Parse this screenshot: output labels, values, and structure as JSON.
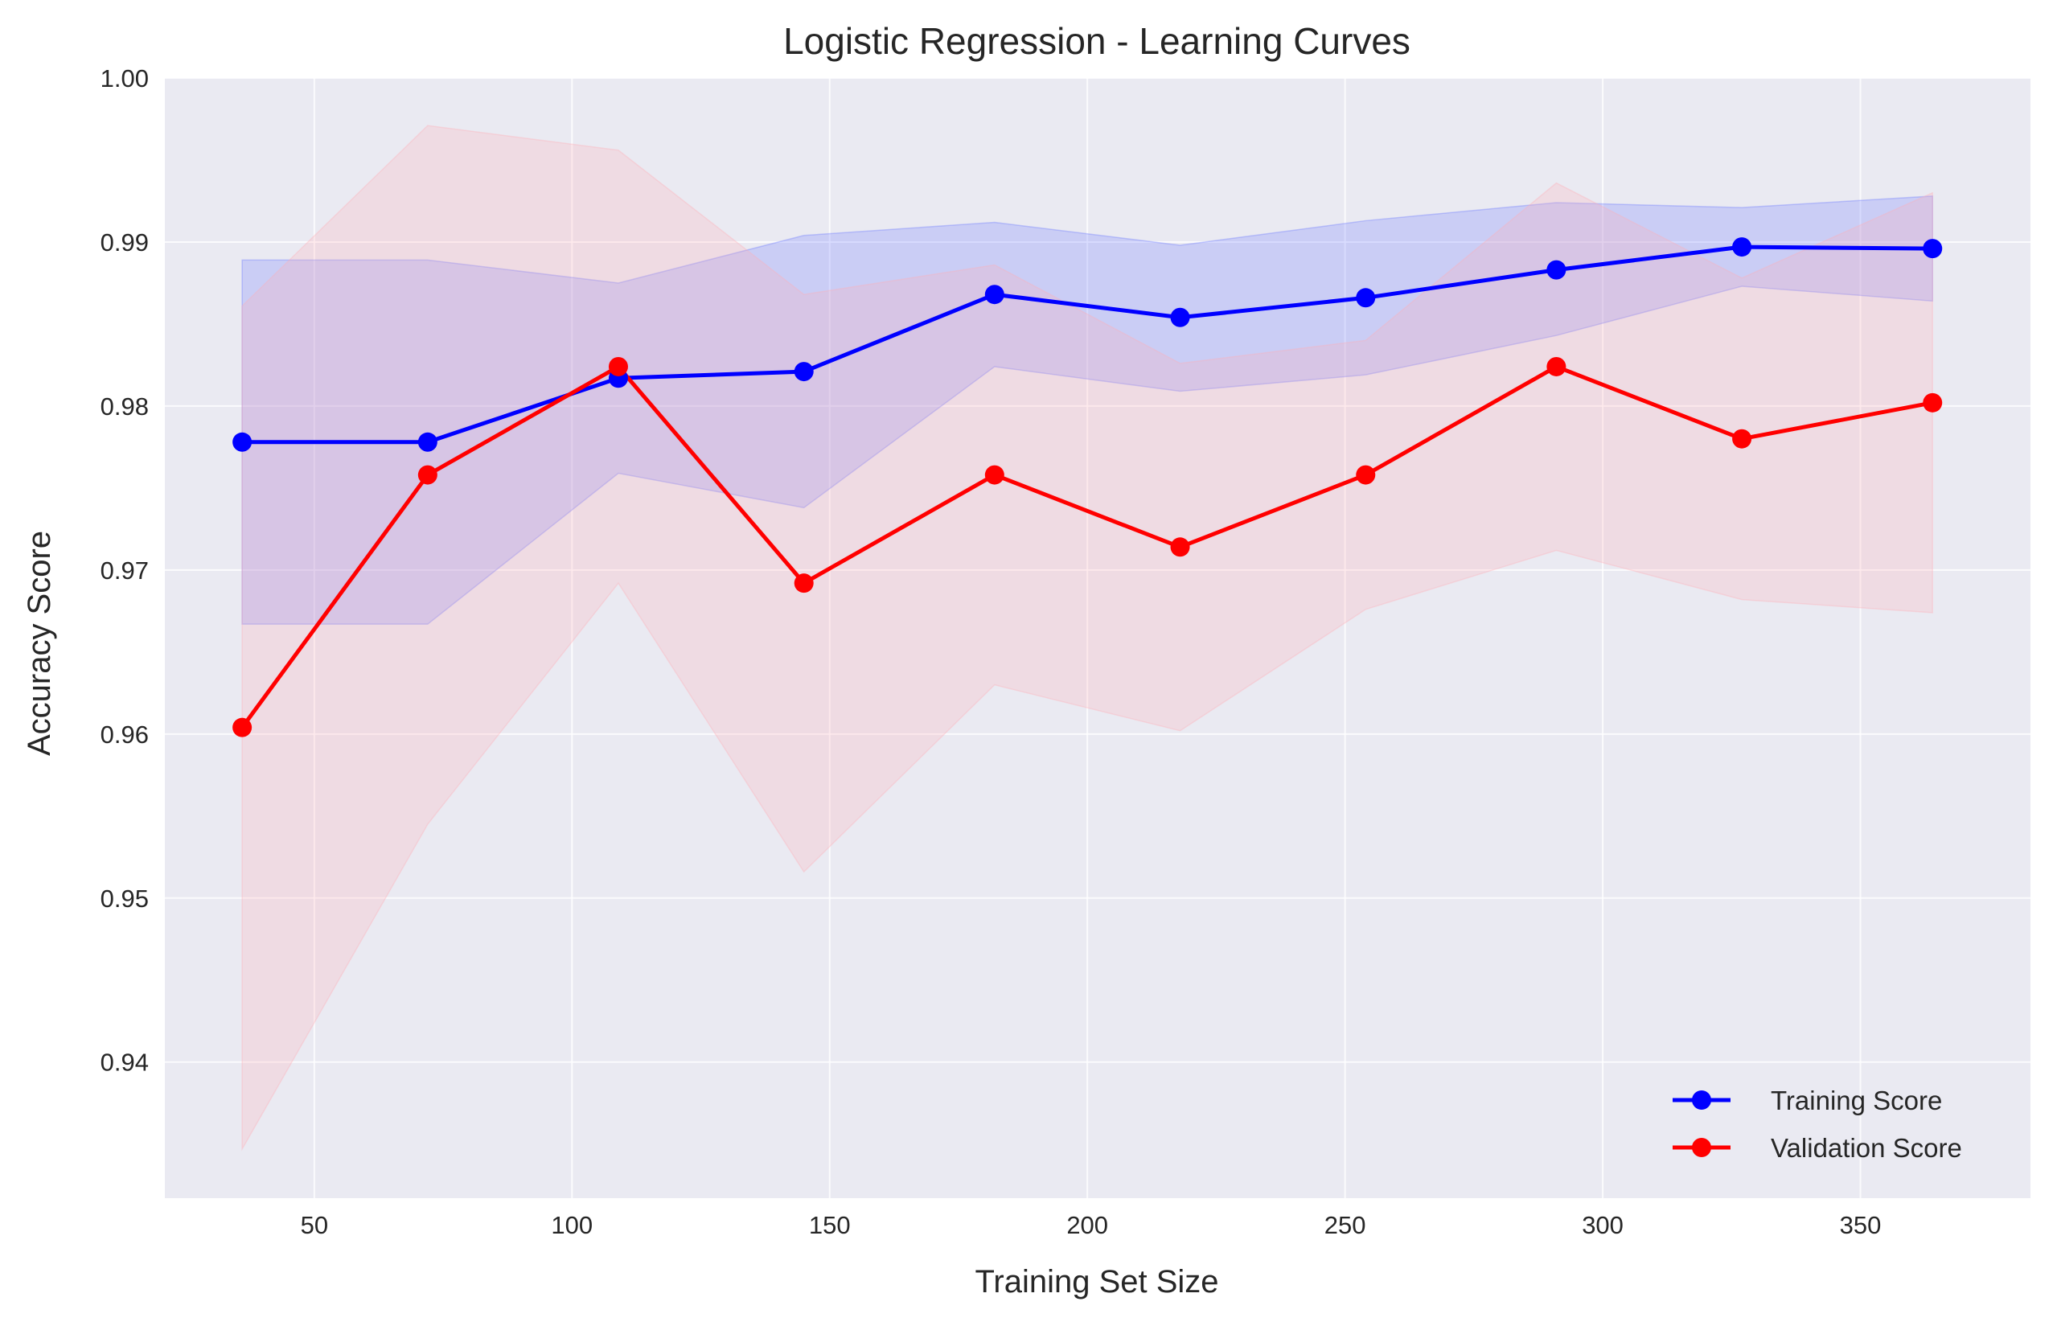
{
  "chart_data": {
    "type": "line",
    "title": "Logistic Regression - Learning Curves",
    "xlabel": "Training Set Size",
    "ylabel": "Accuracy Score",
    "xlim": [
      21,
      383
    ],
    "ylim": [
      0.9317,
      1.0
    ],
    "xticks": [
      50,
      100,
      150,
      200,
      250,
      300,
      350
    ],
    "yticks": [
      0.94,
      0.95,
      0.96,
      0.97,
      0.98,
      0.99,
      1.0
    ],
    "ytick_labels": [
      "0.94",
      "0.95",
      "0.96",
      "0.97",
      "0.98",
      "0.99",
      "1.00"
    ],
    "grid": true,
    "legend_position": "lower-right",
    "x": [
      36,
      72,
      109,
      145,
      182,
      218,
      254,
      291,
      327,
      364
    ],
    "series": [
      {
        "name": "Training Score",
        "color": "#0000ff",
        "band_color": "#6a78ff",
        "values": [
          0.9778,
          0.9778,
          0.9817,
          0.9821,
          0.9868,
          0.9854,
          0.9866,
          0.9883,
          0.9897,
          0.9896
        ],
        "lower": [
          0.9667,
          0.9667,
          0.9759,
          0.9738,
          0.9824,
          0.9809,
          0.9819,
          0.9843,
          0.9873,
          0.9864
        ],
        "upper": [
          0.9889,
          0.9889,
          0.9875,
          0.9904,
          0.9912,
          0.9898,
          0.9913,
          0.9924,
          0.9921,
          0.9928
        ]
      },
      {
        "name": "Validation Score",
        "color": "#ff0000",
        "band_color": "#ffb0b8",
        "values": [
          0.9604,
          0.9758,
          0.9824,
          0.9692,
          0.9758,
          0.9714,
          0.9758,
          0.9824,
          0.978,
          0.9802
        ],
        "lower": [
          0.9347,
          0.9545,
          0.9692,
          0.9516,
          0.963,
          0.9602,
          0.9676,
          0.9712,
          0.9682,
          0.9674
        ],
        "upper": [
          0.9861,
          0.9971,
          0.9956,
          0.9868,
          0.9886,
          0.9826,
          0.984,
          0.9936,
          0.9878,
          0.993
        ]
      }
    ]
  }
}
